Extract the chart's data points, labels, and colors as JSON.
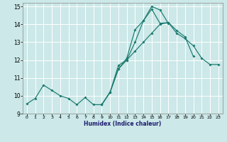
{
  "xlabel": "Humidex (Indice chaleur)",
  "bg_color": "#cce8e8",
  "line_color": "#1a7a6e",
  "grid_color": "#ffffff",
  "xlim": [
    -0.5,
    23.5
  ],
  "ylim": [
    9,
    15.2
  ],
  "xticks": [
    0,
    1,
    2,
    3,
    4,
    5,
    6,
    7,
    8,
    9,
    10,
    11,
    12,
    13,
    14,
    15,
    16,
    17,
    18,
    19,
    20,
    21,
    22,
    23
  ],
  "yticks": [
    9,
    10,
    11,
    12,
    13,
    14,
    15
  ],
  "line1_x": [
    0,
    1,
    2,
    3,
    4,
    5,
    6,
    7,
    8,
    9,
    10,
    11,
    12,
    13,
    14,
    15,
    16,
    17,
    18,
    19,
    20,
    21,
    22,
    23
  ],
  "line1_y": [
    9.55,
    9.85,
    10.6,
    10.3,
    10.0,
    9.85,
    9.5,
    9.9,
    9.5,
    9.5,
    10.2,
    11.5,
    12.0,
    12.5,
    13.0,
    13.5,
    14.0,
    14.1,
    13.5,
    13.2,
    12.8,
    12.1,
    11.75,
    11.75
  ],
  "line2_x": [
    9,
    10,
    11,
    12,
    13,
    14,
    15,
    16,
    17,
    18,
    19,
    20
  ],
  "line2_y": [
    9.5,
    10.2,
    11.5,
    12.1,
    13.7,
    14.2,
    14.85,
    14.05,
    14.1,
    13.65,
    13.3,
    12.2
  ],
  "line3_x": [
    9,
    10,
    11,
    12,
    13,
    14,
    15,
    16,
    17
  ],
  "line3_y": [
    9.5,
    10.2,
    11.7,
    12.0,
    13.0,
    14.2,
    15.0,
    14.8,
    14.05
  ]
}
